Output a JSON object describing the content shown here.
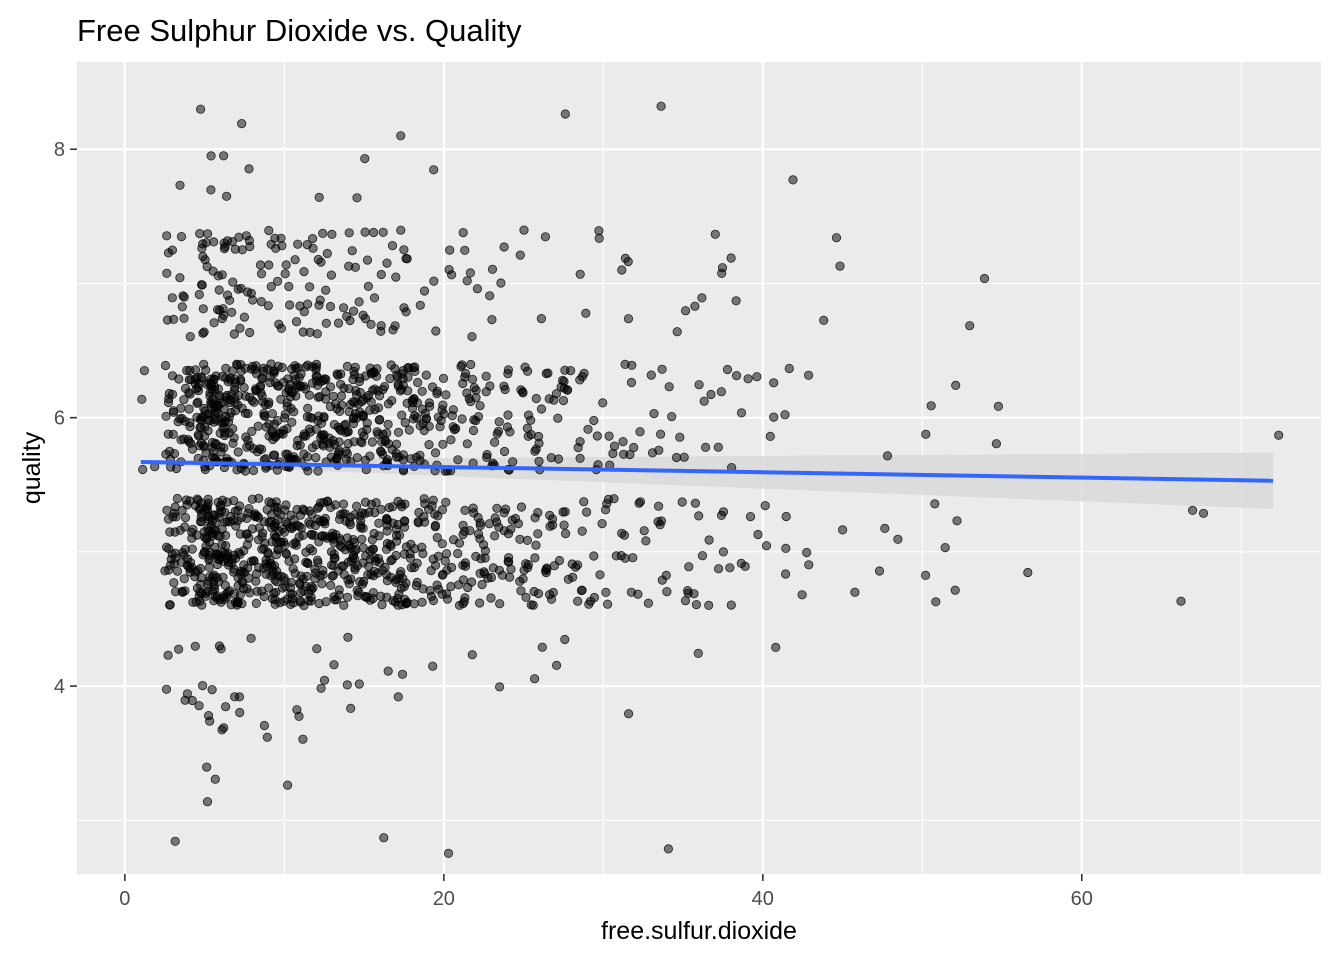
{
  "chart_data": {
    "type": "scatter",
    "title": "Free Sulphur Dioxide vs. Quality",
    "xlabel": "free.sulfur.dioxide",
    "ylabel": "quality",
    "xlim": [
      -3,
      75
    ],
    "ylim": [
      2.6,
      8.65
    ],
    "x_ticks": [
      0,
      20,
      40,
      60
    ],
    "x_minor_ticks": [
      10,
      30,
      50,
      70
    ],
    "y_ticks": [
      4,
      6,
      8
    ],
    "y_minor_ticks": [
      3,
      5,
      7
    ],
    "grid": true,
    "legend": "none",
    "jitter": {
      "x": 0.5,
      "y": 0.4
    },
    "colors": {
      "panel": "#ebebeb",
      "grid": "#ffffff",
      "point_fill": "#000000",
      "point_opacity": 0.5,
      "trend_line": "#3366ff",
      "confidence_band": "#d9d9d9"
    },
    "counts_by_quality": [
      {
        "quality": 3,
        "counts": [
          [
            3,
            1
          ],
          [
            5,
            2
          ],
          [
            6,
            1
          ],
          [
            10,
            1
          ],
          [
            16,
            1
          ],
          [
            20,
            1
          ],
          [
            34,
            1
          ]
        ]
      },
      {
        "quality": 4,
        "counts": [
          [
            3,
            3
          ],
          [
            4,
            4
          ],
          [
            5,
            5
          ],
          [
            6,
            5
          ],
          [
            7,
            3
          ],
          [
            8,
            1
          ],
          [
            9,
            2
          ],
          [
            11,
            3
          ],
          [
            12,
            2
          ],
          [
            13,
            2
          ],
          [
            14,
            3
          ],
          [
            15,
            1
          ],
          [
            17,
            3
          ],
          [
            19,
            1
          ],
          [
            22,
            1
          ],
          [
            23,
            1
          ],
          [
            26,
            2
          ],
          [
            27,
            1
          ],
          [
            28,
            1
          ],
          [
            32,
            1
          ],
          [
            36,
            1
          ],
          [
            41,
            1
          ]
        ]
      },
      {
        "quality": 5,
        "counts": [
          [
            3,
            25
          ],
          [
            4,
            30
          ],
          [
            5,
            55
          ],
          [
            6,
            60
          ],
          [
            7,
            40
          ],
          [
            8,
            30
          ],
          [
            9,
            45
          ],
          [
            10,
            40
          ],
          [
            11,
            35
          ],
          [
            12,
            38
          ],
          [
            13,
            32
          ],
          [
            14,
            35
          ],
          [
            15,
            32
          ],
          [
            16,
            32
          ],
          [
            17,
            30
          ],
          [
            18,
            25
          ],
          [
            19,
            20
          ],
          [
            20,
            18
          ],
          [
            21,
            17
          ],
          [
            22,
            15
          ],
          [
            23,
            15
          ],
          [
            24,
            14
          ],
          [
            25,
            13
          ],
          [
            26,
            12
          ],
          [
            27,
            10
          ],
          [
            28,
            9
          ],
          [
            29,
            9
          ],
          [
            30,
            7
          ],
          [
            31,
            6
          ],
          [
            32,
            5
          ],
          [
            33,
            5
          ],
          [
            34,
            5
          ],
          [
            35,
            5
          ],
          [
            36,
            5
          ],
          [
            37,
            4
          ],
          [
            38,
            4
          ],
          [
            39,
            3
          ],
          [
            40,
            3
          ],
          [
            41,
            3
          ],
          [
            42,
            1
          ],
          [
            43,
            2
          ],
          [
            45,
            1
          ],
          [
            46,
            1
          ],
          [
            47,
            1
          ],
          [
            48,
            2
          ],
          [
            50,
            1
          ],
          [
            51,
            3
          ],
          [
            52,
            2
          ],
          [
            57,
            1
          ],
          [
            66,
            1
          ],
          [
            67,
            1
          ],
          [
            68,
            1
          ]
        ]
      },
      {
        "quality": 6,
        "counts": [
          [
            1,
            3
          ],
          [
            2,
            1
          ],
          [
            3,
            20
          ],
          [
            4,
            25
          ],
          [
            5,
            50
          ],
          [
            6,
            55
          ],
          [
            7,
            35
          ],
          [
            8,
            28
          ],
          [
            9,
            40
          ],
          [
            10,
            38
          ],
          [
            11,
            34
          ],
          [
            12,
            35
          ],
          [
            13,
            30
          ],
          [
            14,
            32
          ],
          [
            15,
            30
          ],
          [
            16,
            30
          ],
          [
            17,
            28
          ],
          [
            18,
            24
          ],
          [
            19,
            18
          ],
          [
            20,
            16
          ],
          [
            21,
            14
          ],
          [
            22,
            13
          ],
          [
            23,
            12
          ],
          [
            24,
            11
          ],
          [
            25,
            10
          ],
          [
            26,
            9
          ],
          [
            27,
            9
          ],
          [
            28,
            8
          ],
          [
            29,
            7
          ],
          [
            30,
            6
          ],
          [
            31,
            5
          ],
          [
            32,
            5
          ],
          [
            33,
            4
          ],
          [
            34,
            4
          ],
          [
            35,
            3
          ],
          [
            36,
            3
          ],
          [
            37,
            3
          ],
          [
            38,
            3
          ],
          [
            39,
            2
          ],
          [
            40,
            2
          ],
          [
            41,
            3
          ],
          [
            42,
            1
          ],
          [
            43,
            1
          ],
          [
            48,
            1
          ],
          [
            50,
            1
          ],
          [
            51,
            1
          ],
          [
            52,
            1
          ],
          [
            55,
            2
          ],
          [
            72,
            1
          ]
        ]
      },
      {
        "quality": 7,
        "counts": [
          [
            3,
            8
          ],
          [
            4,
            6
          ],
          [
            5,
            14
          ],
          [
            6,
            16
          ],
          [
            7,
            12
          ],
          [
            8,
            7
          ],
          [
            9,
            10
          ],
          [
            10,
            9
          ],
          [
            11,
            9
          ],
          [
            12,
            10
          ],
          [
            13,
            7
          ],
          [
            14,
            8
          ],
          [
            15,
            7
          ],
          [
            16,
            7
          ],
          [
            17,
            6
          ],
          [
            18,
            4
          ],
          [
            19,
            4
          ],
          [
            20,
            3
          ],
          [
            21,
            3
          ],
          [
            22,
            3
          ],
          [
            23,
            3
          ],
          [
            24,
            2
          ],
          [
            25,
            2
          ],
          [
            26,
            2
          ],
          [
            29,
            2
          ],
          [
            30,
            2
          ],
          [
            31,
            2
          ],
          [
            32,
            2
          ],
          [
            35,
            2
          ],
          [
            36,
            2
          ],
          [
            37,
            3
          ],
          [
            38,
            2
          ],
          [
            44,
            1
          ],
          [
            45,
            2
          ],
          [
            53,
            1
          ],
          [
            54,
            1
          ]
        ]
      },
      {
        "quality": 8,
        "counts": [
          [
            3,
            1
          ],
          [
            5,
            3
          ],
          [
            6,
            2
          ],
          [
            7,
            1
          ],
          [
            8,
            1
          ],
          [
            12,
            1
          ],
          [
            15,
            2
          ],
          [
            17,
            1
          ],
          [
            19,
            1
          ],
          [
            28,
            1
          ],
          [
            34,
            1
          ],
          [
            42,
            1
          ]
        ]
      }
    ],
    "trend": {
      "method": "lm",
      "x": [
        1,
        72
      ],
      "y": [
        5.67,
        5.53
      ],
      "ci_lower": [
        5.655,
        5.32
      ],
      "ci_upper": [
        5.685,
        5.74
      ]
    }
  }
}
